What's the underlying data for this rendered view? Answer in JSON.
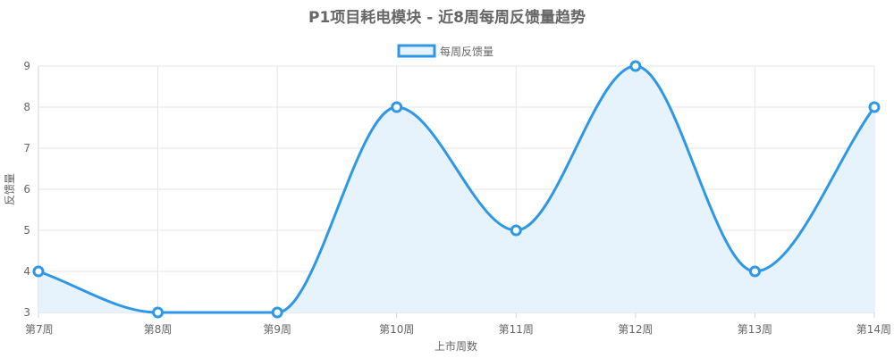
{
  "chart_data": {
    "type": "line",
    "title": "P1项目耗电模块 - 近8周每周反馈量趋势",
    "xlabel": "上市周数",
    "ylabel": "反馈量",
    "categories": [
      "第7周",
      "第8周",
      "第9周",
      "第10周",
      "第11周",
      "第12周",
      "第13周",
      "第14周"
    ],
    "series": [
      {
        "name": "每周反馈量",
        "values": [
          4,
          3,
          3,
          8,
          5,
          9,
          4,
          8
        ],
        "color": "#2f97e6",
        "fill": "#e6f3fc"
      }
    ],
    "ylim": [
      3,
      9
    ],
    "yticks": [
      3,
      4,
      5,
      6,
      7,
      8,
      9
    ],
    "grid": true,
    "legend": "top-center",
    "curve": "smooth"
  }
}
